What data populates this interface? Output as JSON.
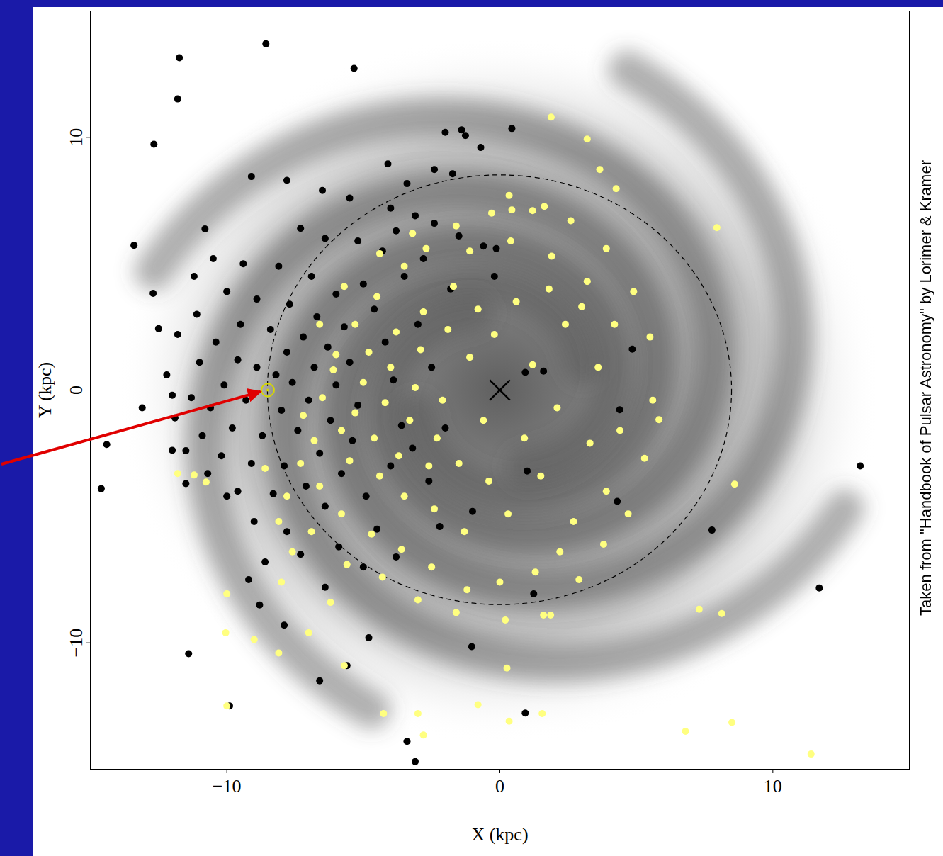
{
  "chart_data": {
    "type": "scatter",
    "x_label": "X (kpc)",
    "y_label": "Y (kpc)",
    "source": "Taken from \"Handbook of Pulsar Astronomy\" by Lorimer & Kramer",
    "xlim": [
      -15,
      15
    ],
    "ylim": [
      -15,
      15
    ],
    "xticks": [
      -10,
      0,
      10
    ],
    "yticks": [
      -10,
      0,
      10
    ],
    "grid": false,
    "sun": [
      -8.5,
      0
    ],
    "galactic_center": [
      0,
      0
    ],
    "solar_circle_radius": 8.5,
    "series": [
      {
        "color": "#000000",
        "marker": "circle",
        "points": [
          [
            -8.2,
            0.6
          ],
          [
            -8.9,
            0.9
          ],
          [
            -9.3,
            -0.4
          ],
          [
            -8.0,
            -0.8
          ],
          [
            -7.6,
            0.3
          ],
          [
            -7.8,
            1.5
          ],
          [
            -9.6,
            1.2
          ],
          [
            -10.1,
            0.2
          ],
          [
            -10.6,
            -0.7
          ],
          [
            -9.8,
            -1.5
          ],
          [
            -8.7,
            -1.8
          ],
          [
            -7.4,
            -1.6
          ],
          [
            -7.0,
            -0.4
          ],
          [
            -6.8,
            0.9
          ],
          [
            -7.2,
            2.1
          ],
          [
            -8.4,
            2.4
          ],
          [
            -9.5,
            2.6
          ],
          [
            -10.4,
            1.9
          ],
          [
            -11.0,
            1.1
          ],
          [
            -11.3,
            -0.3
          ],
          [
            -10.9,
            -1.8
          ],
          [
            -10.2,
            -2.6
          ],
          [
            -9.1,
            -2.9
          ],
          [
            -7.9,
            -3.0
          ],
          [
            -6.6,
            -2.5
          ],
          [
            -6.2,
            -1.2
          ],
          [
            -6.0,
            0.2
          ],
          [
            -6.3,
            1.7
          ],
          [
            -6.7,
            2.9
          ],
          [
            -7.7,
            3.4
          ],
          [
            -8.9,
            3.6
          ],
          [
            -10.0,
            3.9
          ],
          [
            -11.1,
            3.0
          ],
          [
            -11.8,
            2.2
          ],
          [
            -12.2,
            0.6
          ],
          [
            -11.9,
            -1.1
          ],
          [
            -11.5,
            -2.4
          ],
          [
            -10.7,
            -3.3
          ],
          [
            -9.6,
            -4.0
          ],
          [
            -8.3,
            -4.1
          ],
          [
            -7.1,
            -3.8
          ],
          [
            -5.8,
            -3.3
          ],
          [
            -5.4,
            -2.0
          ],
          [
            -5.2,
            -0.6
          ],
          [
            -5.5,
            1.1
          ],
          [
            -5.7,
            2.5
          ],
          [
            -6.0,
            3.8
          ],
          [
            -6.9,
            4.5
          ],
          [
            -8.1,
            4.9
          ],
          [
            -9.4,
            5.0
          ],
          [
            -10.5,
            5.2
          ],
          [
            -11.2,
            4.5
          ],
          [
            -5.0,
            4.2
          ],
          [
            -4.6,
            3.2
          ],
          [
            -4.3,
            5.5
          ],
          [
            -5.2,
            5.9
          ],
          [
            -6.4,
            6.0
          ],
          [
            -7.3,
            6.4
          ],
          [
            -3.8,
            6.3
          ],
          [
            -3.1,
            6.9
          ],
          [
            -2.4,
            6.6
          ],
          [
            -1.5,
            6.1
          ],
          [
            -0.6,
            5.7
          ],
          [
            -2.8,
            5.2
          ],
          [
            -3.5,
            4.5
          ],
          [
            -4.0,
            7.2
          ],
          [
            -5.5,
            7.6
          ],
          [
            -6.5,
            7.9
          ],
          [
            -3.4,
            8.17
          ],
          [
            -2.4,
            8.73
          ],
          [
            -1.73,
            8.56
          ],
          [
            -4.1,
            8.95
          ],
          [
            -7.8,
            8.3
          ],
          [
            -9.1,
            8.45
          ],
          [
            -10.8,
            6.38
          ],
          [
            -13.4,
            5.73
          ],
          [
            -12.7,
            3.83
          ],
          [
            -12.5,
            2.43
          ],
          [
            -13.1,
            -0.7
          ],
          [
            -12.0,
            -0.2
          ],
          [
            -12.0,
            -2.38
          ],
          [
            -14.4,
            -2.15
          ],
          [
            -14.6,
            -3.9
          ],
          [
            -11.5,
            -3.7
          ],
          [
            -10.0,
            -4.2
          ],
          [
            -9.0,
            -5.2
          ],
          [
            -7.8,
            -5.6
          ],
          [
            -6.4,
            -4.6
          ],
          [
            -4.9,
            -4.2
          ],
          [
            -4.0,
            -3.0
          ],
          [
            -3.6,
            -1.4
          ],
          [
            -3.9,
            0.4
          ],
          [
            -4.2,
            1.9
          ],
          [
            -3.0,
            2.6
          ],
          [
            -2.5,
            0.9
          ],
          [
            -3.2,
            -2.3
          ],
          [
            -2.6,
            -3.6
          ],
          [
            -4.5,
            -5.5
          ],
          [
            -5.9,
            -6.2
          ],
          [
            -7.3,
            -6.5
          ],
          [
            -8.6,
            -6.8
          ],
          [
            -9.2,
            -7.5
          ],
          [
            -8.8,
            -8.5
          ],
          [
            -7.9,
            -9.3
          ],
          [
            -6.4,
            -7.8
          ],
          [
            -5.0,
            -7.0
          ],
          [
            -3.8,
            -6.6
          ],
          [
            -2.2,
            -5.4
          ],
          [
            -11.4,
            -10.43
          ],
          [
            -9.9,
            -12.5
          ],
          [
            -6.6,
            -11.5
          ],
          [
            -3.4,
            -13.9
          ],
          [
            -3.1,
            -14.7
          ],
          [
            0.93,
            -12.78
          ],
          [
            -1.03,
            -10.15
          ],
          [
            1.24,
            -8.06
          ],
          [
            4.3,
            -4.4
          ],
          [
            7.77,
            -5.54
          ],
          [
            11.7,
            -7.83
          ],
          [
            13.2,
            -3.0
          ],
          [
            4.85,
            1.62
          ],
          [
            4.39,
            -0.78
          ],
          [
            1.6,
            0.75
          ],
          [
            0.93,
            0.7
          ],
          [
            -0.13,
            5.6
          ],
          [
            1.0,
            -3.2
          ],
          [
            -11.74,
            13.15
          ],
          [
            -8.57,
            13.7
          ],
          [
            -5.34,
            12.73
          ],
          [
            -11.8,
            11.52
          ],
          [
            -12.67,
            9.73
          ],
          [
            -2.0,
            10.2
          ],
          [
            -1.4,
            10.3
          ],
          [
            -1.26,
            10.07
          ],
          [
            -0.7,
            9.6
          ],
          [
            0.44,
            10.35
          ],
          [
            -0.2,
            4.5
          ],
          [
            -1.8,
            4.0
          ],
          [
            -2.0,
            -1.5
          ],
          [
            -1.0,
            -4.8
          ],
          [
            -4.8,
            -9.8
          ],
          [
            -5.6,
            -10.9
          ]
        ]
      },
      {
        "color": "#ffff80",
        "marker": "circle",
        "points": [
          [
            -7.2,
            -1.0
          ],
          [
            -6.8,
            -2.0
          ],
          [
            -6.5,
            -0.3
          ],
          [
            -6.1,
            0.8
          ],
          [
            -5.8,
            -1.6
          ],
          [
            -5.5,
            -2.8
          ],
          [
            -5.3,
            -0.9
          ],
          [
            -5.0,
            0.3
          ],
          [
            -4.8,
            1.5
          ],
          [
            -4.6,
            -1.9
          ],
          [
            -4.4,
            -3.4
          ],
          [
            -4.2,
            -0.5
          ],
          [
            -4.0,
            0.9
          ],
          [
            -3.8,
            2.3
          ],
          [
            -3.7,
            -2.6
          ],
          [
            -3.5,
            -4.2
          ],
          [
            -3.3,
            -1.2
          ],
          [
            -3.1,
            0.1
          ],
          [
            -2.9,
            1.6
          ],
          [
            -2.8,
            3.1
          ],
          [
            -2.6,
            -3.0
          ],
          [
            -2.4,
            -4.7
          ],
          [
            -2.3,
            -1.9
          ],
          [
            -2.1,
            -0.4
          ],
          [
            -1.9,
            2.4
          ],
          [
            -1.7,
            4.1
          ],
          [
            -1.5,
            -2.9
          ],
          [
            -1.3,
            -5.6
          ],
          [
            -1.1,
            1.3
          ],
          [
            -0.8,
            3.2
          ],
          [
            -0.6,
            -1.2
          ],
          [
            -0.4,
            -3.6
          ],
          [
            -0.2,
            2.2
          ],
          [
            0.3,
            -4.9
          ],
          [
            0.6,
            3.5
          ],
          [
            0.9,
            -1.9
          ],
          [
            1.2,
            1.0
          ],
          [
            1.5,
            -3.4
          ],
          [
            1.8,
            4.0
          ],
          [
            2.1,
            -0.7
          ],
          [
            2.4,
            2.6
          ],
          [
            2.7,
            -5.2
          ],
          [
            3.0,
            3.3
          ],
          [
            3.3,
            -2.1
          ],
          [
            3.6,
            0.9
          ],
          [
            3.9,
            -4.0
          ],
          [
            4.2,
            2.6
          ],
          [
            4.4,
            -1.6
          ],
          [
            3.2,
            4.3
          ],
          [
            2.2,
            -6.4
          ],
          [
            1.3,
            -7.2
          ],
          [
            0.0,
            -7.6
          ],
          [
            -1.2,
            -7.9
          ],
          [
            -2.5,
            -7.0
          ],
          [
            -3.6,
            -6.3
          ],
          [
            -4.7,
            -5.7
          ],
          [
            -5.8,
            -4.9
          ],
          [
            -6.6,
            -3.8
          ],
          [
            -7.3,
            -2.9
          ],
          [
            -7.8,
            -4.2
          ],
          [
            -6.9,
            -5.6
          ],
          [
            -5.6,
            -6.9
          ],
          [
            -4.3,
            -7.4
          ],
          [
            -3.0,
            -8.3
          ],
          [
            -1.6,
            -8.8
          ],
          [
            0.2,
            -9.1
          ],
          [
            1.6,
            -8.9
          ],
          [
            2.9,
            -7.5
          ],
          [
            3.8,
            -6.1
          ],
          [
            4.7,
            -4.9
          ],
          [
            5.3,
            -2.7
          ],
          [
            5.6,
            -0.4
          ],
          [
            5.5,
            2.1
          ],
          [
            4.9,
            3.9
          ],
          [
            3.9,
            5.6
          ],
          [
            2.6,
            6.7
          ],
          [
            1.2,
            7.1
          ],
          [
            -0.3,
            7.0
          ],
          [
            -1.6,
            6.5
          ],
          [
            -2.7,
            5.6
          ],
          [
            -3.5,
            4.9
          ],
          [
            -4.5,
            3.7
          ],
          [
            -5.3,
            2.6
          ],
          [
            -6.0,
            1.4
          ],
          [
            -6.6,
            2.6
          ],
          [
            -5.7,
            4.1
          ],
          [
            -4.4,
            5.4
          ],
          [
            -3.2,
            6.2
          ],
          [
            -1.1,
            5.5
          ],
          [
            0.4,
            5.9
          ],
          [
            1.9,
            5.3
          ],
          [
            -7.6,
            -6.4
          ],
          [
            -8.1,
            -5.2
          ],
          [
            -8.6,
            -3.1
          ],
          [
            -8.0,
            -7.6
          ],
          [
            -6.2,
            -8.4
          ],
          [
            -7.0,
            -9.6
          ],
          [
            1.88,
            10.8
          ],
          [
            3.2,
            9.93
          ],
          [
            3.66,
            8.73
          ],
          [
            4.26,
            7.97
          ],
          [
            1.63,
            7.27
          ],
          [
            0.44,
            7.13
          ],
          [
            0.34,
            7.7
          ],
          [
            7.95,
            6.43
          ],
          [
            5.83,
            -1.17
          ],
          [
            8.6,
            -3.72
          ],
          [
            7.3,
            -8.67
          ],
          [
            8.13,
            -8.84
          ],
          [
            6.8,
            -13.5
          ],
          [
            8.5,
            -13.15
          ],
          [
            11.4,
            -14.4
          ],
          [
            -10.0,
            -8.06
          ],
          [
            -10.04,
            -9.6
          ],
          [
            -9.0,
            -9.87
          ],
          [
            -8.1,
            -10.4
          ],
          [
            -10.0,
            -12.5
          ],
          [
            -5.7,
            -10.9
          ],
          [
            -4.26,
            -12.8
          ],
          [
            -3.0,
            -12.8
          ],
          [
            -2.8,
            -13.65
          ],
          [
            -0.8,
            -12.45
          ],
          [
            0.26,
            -11.0
          ],
          [
            0.34,
            -13.1
          ],
          [
            1.55,
            -12.8
          ],
          [
            1.86,
            -8.9
          ],
          [
            -11.2,
            -3.36
          ],
          [
            -10.76,
            -3.64
          ],
          [
            -11.8,
            -3.3
          ]
        ]
      }
    ]
  }
}
